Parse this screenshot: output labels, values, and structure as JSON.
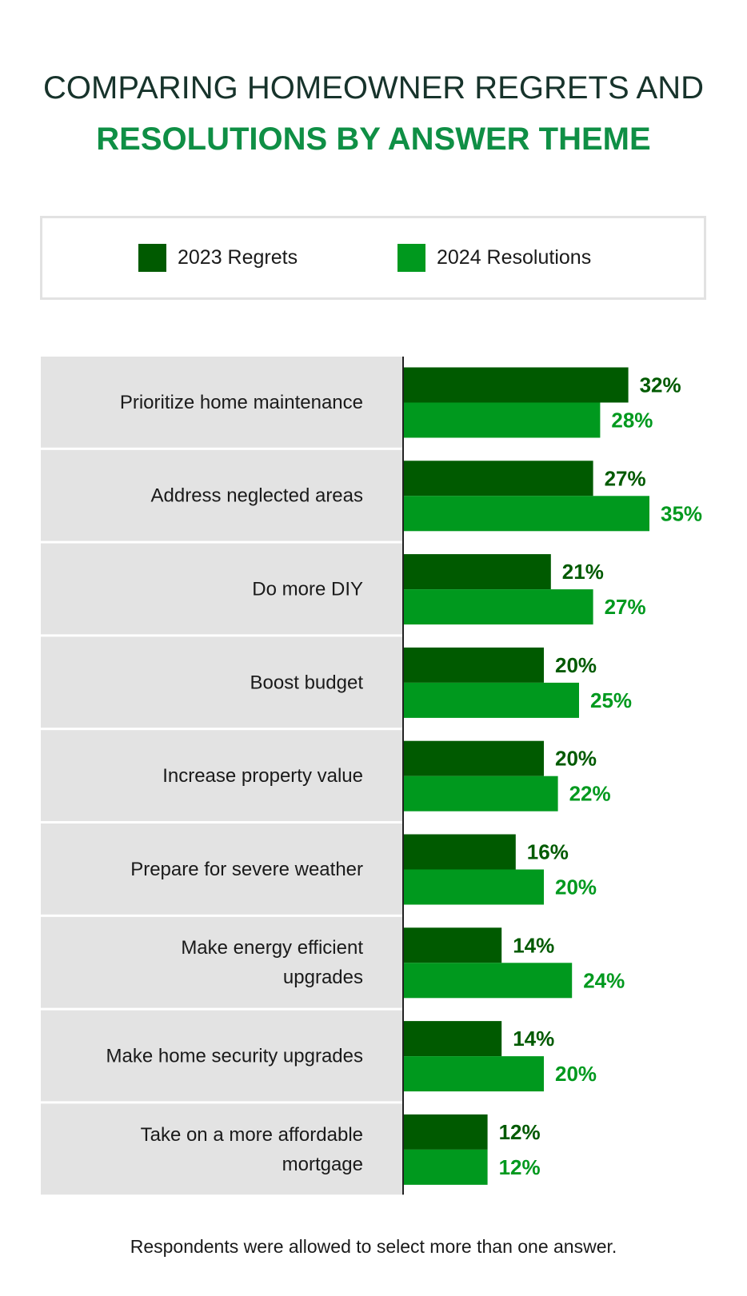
{
  "title_line1": "COMPARING HOMEOWNER REGRETS AND",
  "title_line2": "RESOLUTIONS BY ANSWER THEME",
  "footnote": "Respondents were allowed to select more than one answer.",
  "colors": {
    "regrets": "#005a00",
    "resolutions": "#00991e",
    "label_bg": "#e3e3e3"
  },
  "chart_data": {
    "type": "bar",
    "orientation": "horizontal",
    "categories": [
      "Prioritize home maintenance",
      "Address neglected areas",
      "Do more DIY",
      "Boost budget",
      "Increase property value",
      "Prepare for severe weather",
      "Make energy efficient upgrades",
      "Make home security upgrades",
      "Take on a more affordable mortgage"
    ],
    "series": [
      {
        "name": "2023 Regrets",
        "color": "#005a00",
        "values": [
          32,
          27,
          21,
          20,
          20,
          16,
          14,
          14,
          12
        ]
      },
      {
        "name": "2024 Resolutions",
        "color": "#00991e",
        "values": [
          28,
          35,
          27,
          25,
          22,
          20,
          24,
          20,
          12
        ]
      }
    ],
    "value_suffix": "%",
    "legend_placement": "top",
    "grid": false
  }
}
